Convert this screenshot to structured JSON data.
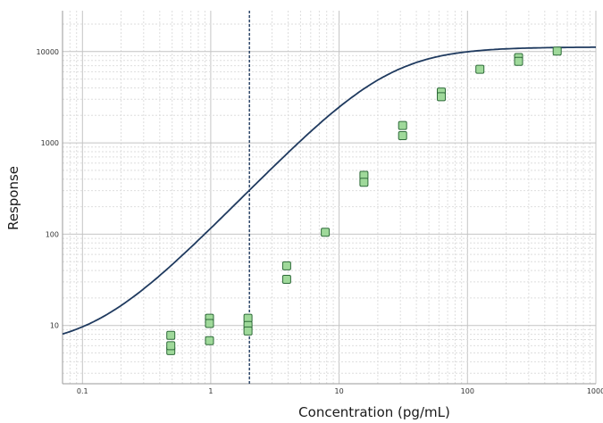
{
  "chart_data": {
    "type": "scatter",
    "xlabel": "Concentration (pg/mL)",
    "ylabel": "Response",
    "x_scale": "log",
    "y_scale": "log",
    "xlim": [
      0.07,
      1000
    ],
    "ylim": [
      2.3,
      28000
    ],
    "x_ticks": [
      0.1,
      1,
      10,
      100,
      1000
    ],
    "x_tick_labels": [
      "0.1",
      "1",
      "10",
      "100",
      "1000"
    ],
    "y_ticks": [
      10,
      100,
      1000,
      10000
    ],
    "y_tick_labels": [
      "10",
      "100",
      "1000",
      "10000"
    ],
    "grid": true,
    "vertical_marker": {
      "x": 2,
      "style": "dashed",
      "color": "#1f3a5f"
    },
    "series": [
      {
        "marker": "square",
        "color": "#9fd99a",
        "edge_color": "#2f6b3a",
        "points": [
          {
            "x": 0.488,
            "y": 7.8
          },
          {
            "x": 0.488,
            "y": 5.3
          },
          {
            "x": 0.488,
            "y": 6.0
          },
          {
            "x": 0.977,
            "y": 12.0
          },
          {
            "x": 0.977,
            "y": 10.5
          },
          {
            "x": 0.977,
            "y": 6.8
          },
          {
            "x": 1.95,
            "y": 12.0
          },
          {
            "x": 1.95,
            "y": 10.0
          },
          {
            "x": 1.95,
            "y": 8.7
          },
          {
            "x": 3.9,
            "y": 45
          },
          {
            "x": 3.9,
            "y": 32
          },
          {
            "x": 7.8,
            "y": 105
          },
          {
            "x": 15.6,
            "y": 440
          },
          {
            "x": 15.6,
            "y": 370
          },
          {
            "x": 31.25,
            "y": 1550
          },
          {
            "x": 31.25,
            "y": 1200
          },
          {
            "x": 62.5,
            "y": 3600
          },
          {
            "x": 62.5,
            "y": 3200
          },
          {
            "x": 125,
            "y": 6400
          },
          {
            "x": 250,
            "y": 8600
          },
          {
            "x": 250,
            "y": 7800
          },
          {
            "x": 500,
            "y": 10100
          }
        ]
      }
    ],
    "fit_curve": {
      "model": "4PL",
      "color": "#1f3a5f",
      "bottom": 5.7,
      "top": 11200,
      "ec50": 24,
      "hill": 1.45
    }
  }
}
